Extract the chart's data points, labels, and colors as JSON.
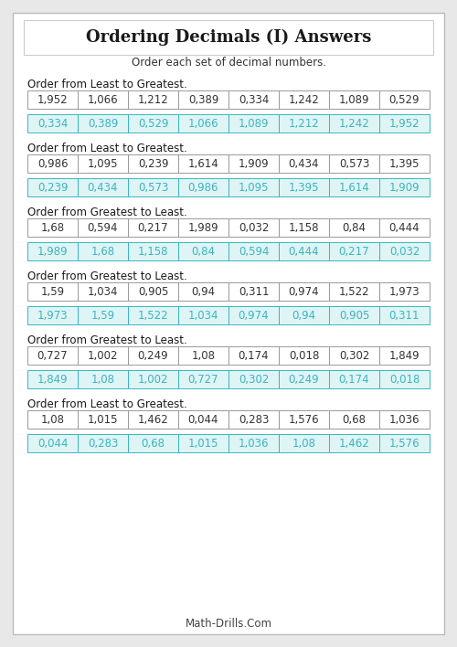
{
  "title": "Ordering Decimals (I) Answers",
  "subtitle": "Order each set of decimal numbers.",
  "footer": "Math-Drills.Com",
  "problems": [
    {
      "instruction": "Order from Least to Greatest.",
      "given": [
        "1,952",
        "1,066",
        "1,212",
        "0,389",
        "0,334",
        "1,242",
        "1,089",
        "0,529"
      ],
      "answer": [
        "0,334",
        "0,389",
        "0,529",
        "1,066",
        "1,089",
        "1,212",
        "1,242",
        "1,952"
      ]
    },
    {
      "instruction": "Order from Least to Greatest.",
      "given": [
        "0,986",
        "1,095",
        "0,239",
        "1,614",
        "1,909",
        "0,434",
        "0,573",
        "1,395"
      ],
      "answer": [
        "0,239",
        "0,434",
        "0,573",
        "0,986",
        "1,095",
        "1,395",
        "1,614",
        "1,909"
      ]
    },
    {
      "instruction": "Order from Greatest to Least.",
      "given": [
        "1,68",
        "0,594",
        "0,217",
        "1,989",
        "0,032",
        "1,158",
        "0,84",
        "0,444"
      ],
      "answer": [
        "1,989",
        "1,68",
        "1,158",
        "0,84",
        "0,594",
        "0,444",
        "0,217",
        "0,032"
      ]
    },
    {
      "instruction": "Order from Greatest to Least.",
      "given": [
        "1,59",
        "1,034",
        "0,905",
        "0,94",
        "0,311",
        "0,974",
        "1,522",
        "1,973"
      ],
      "answer": [
        "1,973",
        "1,59",
        "1,522",
        "1,034",
        "0,974",
        "0,94",
        "0,905",
        "0,311"
      ]
    },
    {
      "instruction": "Order from Greatest to Least.",
      "given": [
        "0,727",
        "1,002",
        "0,249",
        "1,08",
        "0,174",
        "0,018",
        "0,302",
        "1,849"
      ],
      "answer": [
        "1,849",
        "1,08",
        "1,002",
        "0,727",
        "0,302",
        "0,249",
        "0,174",
        "0,018"
      ]
    },
    {
      "instruction": "Order from Least to Greatest.",
      "given": [
        "1,08",
        "1,015",
        "1,462",
        "0,044",
        "0,283",
        "1,576",
        "0,68",
        "1,036"
      ],
      "answer": [
        "0,044",
        "0,283",
        "0,68",
        "1,015",
        "1,036",
        "1,08",
        "1,462",
        "1,576"
      ]
    }
  ],
  "given_text_color": "#333333",
  "answer_text_color": "#3ab5c0",
  "given_bg_color": "#ffffff",
  "answer_bg_color": "#dff4f5",
  "border_color": "#999999",
  "answer_border_color": "#3ab5c0",
  "title_box_border": "#cccccc",
  "background_color": "#ffffff",
  "page_bg_color": "#e8e8e8"
}
